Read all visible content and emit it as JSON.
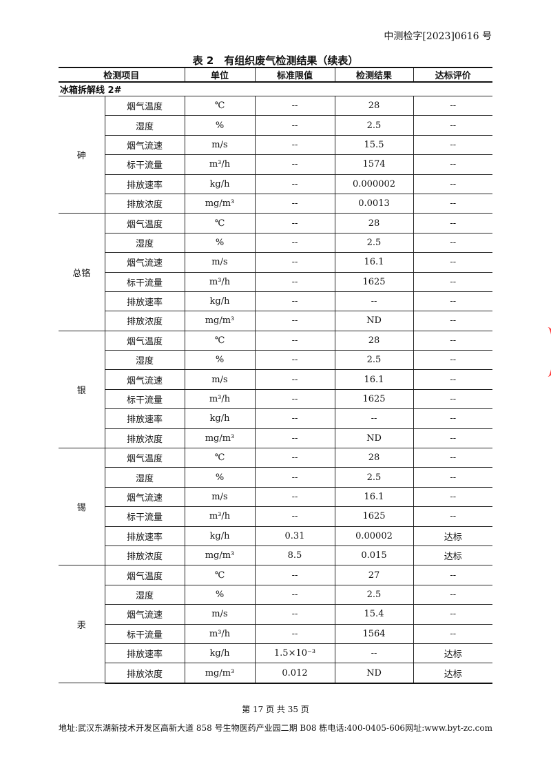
{
  "header": {
    "doc_number": "中测检字[2023]0616 号"
  },
  "table": {
    "title": "表 2　有组织废气检测结果（续表）",
    "columns": [
      "检测项目",
      "单位",
      "标准限值",
      "检测结果",
      "达标评价"
    ],
    "section": "冰箱拆解线 2#",
    "groups": [
      {
        "name": "砷",
        "rows": [
          [
            "烟气温度",
            "℃",
            "--",
            "28",
            "--"
          ],
          [
            "湿度",
            "%",
            "--",
            "2.5",
            "--"
          ],
          [
            "烟气流速",
            "m/s",
            "--",
            "15.5",
            "--"
          ],
          [
            "标干流量",
            "m³/h",
            "--",
            "1574",
            "--"
          ],
          [
            "排放速率",
            "kg/h",
            "--",
            "0.000002",
            "--"
          ],
          [
            "排放浓度",
            "mg/m³",
            "--",
            "0.0013",
            "--"
          ]
        ]
      },
      {
        "name": "总铬",
        "rows": [
          [
            "烟气温度",
            "℃",
            "--",
            "28",
            "--"
          ],
          [
            "湿度",
            "%",
            "--",
            "2.5",
            "--"
          ],
          [
            "烟气流速",
            "m/s",
            "--",
            "16.1",
            "--"
          ],
          [
            "标干流量",
            "m³/h",
            "--",
            "1625",
            "--"
          ],
          [
            "排放速率",
            "kg/h",
            "--",
            "--",
            "--"
          ],
          [
            "排放浓度",
            "mg/m³",
            "--",
            "ND",
            "--"
          ]
        ]
      },
      {
        "name": "银",
        "rows": [
          [
            "烟气温度",
            "℃",
            "--",
            "28",
            "--"
          ],
          [
            "湿度",
            "%",
            "--",
            "2.5",
            "--"
          ],
          [
            "烟气流速",
            "m/s",
            "--",
            "16.1",
            "--"
          ],
          [
            "标干流量",
            "m³/h",
            "--",
            "1625",
            "--"
          ],
          [
            "排放速率",
            "kg/h",
            "--",
            "--",
            "--"
          ],
          [
            "排放浓度",
            "mg/m³",
            "--",
            "ND",
            "--"
          ]
        ]
      },
      {
        "name": "锡",
        "rows": [
          [
            "烟气温度",
            "℃",
            "--",
            "28",
            "--"
          ],
          [
            "湿度",
            "%",
            "--",
            "2.5",
            "--"
          ],
          [
            "烟气流速",
            "m/s",
            "--",
            "16.1",
            "--"
          ],
          [
            "标干流量",
            "m³/h",
            "--",
            "1625",
            "--"
          ],
          [
            "排放速率",
            "kg/h",
            "0.31",
            "0.00002",
            "达标"
          ],
          [
            "排放浓度",
            "mg/m³",
            "8.5",
            "0.015",
            "达标"
          ]
        ]
      },
      {
        "name": "汞",
        "rows": [
          [
            "烟气温度",
            "℃",
            "--",
            "27",
            "--"
          ],
          [
            "湿度",
            "%",
            "--",
            "2.5",
            "--"
          ],
          [
            "烟气流速",
            "m/s",
            "--",
            "15.4",
            "--"
          ],
          [
            "标干流量",
            "m³/h",
            "--",
            "1564",
            "--"
          ],
          [
            "排放速率",
            "kg/h",
            "1.5×10⁻³",
            "--",
            "达标"
          ],
          [
            "排放浓度",
            "mg/m³",
            "0.012",
            "ND",
            "达标"
          ]
        ]
      }
    ]
  },
  "footer": {
    "page": "第 17 页 共 35 页",
    "address": "地址:武汉东湖新技术开发区高新大道 858 号生物医药产业园二期 B08 栋",
    "phone": "电话:400-0405-606",
    "website": "网址:www.byt-zc.com"
  },
  "seal_color": "#ff3333"
}
